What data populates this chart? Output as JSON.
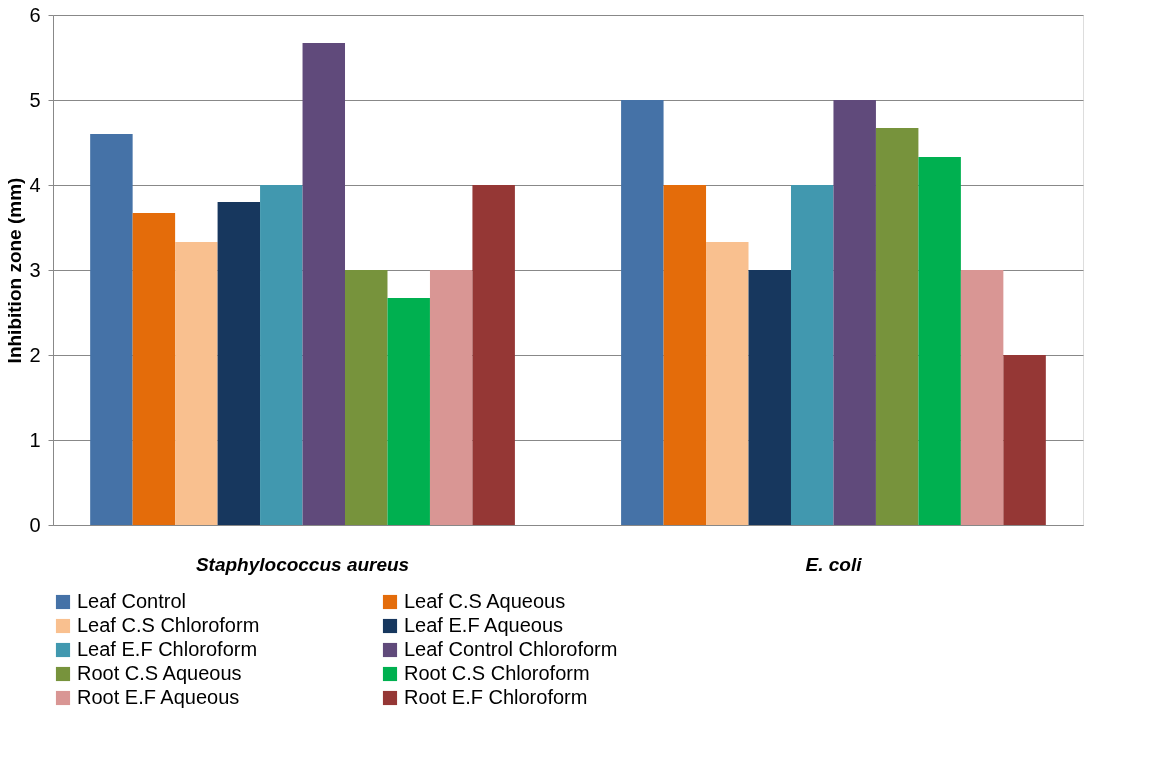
{
  "chart_data": {
    "type": "bar",
    "ylabel": "Inhibition zone (mm)",
    "categories": [
      "Staphylococcus aureus",
      "E. coli"
    ],
    "series": [
      {
        "name": "Leaf Control",
        "color": "#4572a7",
        "values": [
          4.6,
          5.0
        ]
      },
      {
        "name": "Leaf C.S Aqueous",
        "color": "#e46c0a",
        "values": [
          3.67,
          4.0
        ]
      },
      {
        "name": "Leaf C.S Chloroform",
        "color": "#f9c08f",
        "values": [
          3.33,
          3.33
        ]
      },
      {
        "name": "Leaf E.F Aqueous",
        "color": "#17375e",
        "values": [
          3.8,
          3.0
        ]
      },
      {
        "name": "Leaf E.F Chloroform",
        "color": "#4198af",
        "values": [
          4.0,
          4.0
        ]
      },
      {
        "name": "Leaf Control  Chloroform",
        "color": "#604a7b",
        "values": [
          5.67,
          5.0
        ]
      },
      {
        "name": "Root C.S Aqueous",
        "color": "#77933c",
        "values": [
          3.0,
          4.67
        ]
      },
      {
        "name": "Root C.S Chloroform",
        "color": "#00b050",
        "values": [
          2.67,
          4.33
        ]
      },
      {
        "name": "Root E.F Aqueous",
        "color": "#d99694",
        "values": [
          3.0,
          3.0
        ]
      },
      {
        "name": "Root E.F Chloroform",
        "color": "#953735",
        "values": [
          4.0,
          2.0
        ]
      }
    ],
    "ylim": [
      0,
      6
    ],
    "yticks": [
      0,
      1,
      2,
      3,
      4,
      5,
      6
    ],
    "grid": "y",
    "legend": "bottom"
  }
}
